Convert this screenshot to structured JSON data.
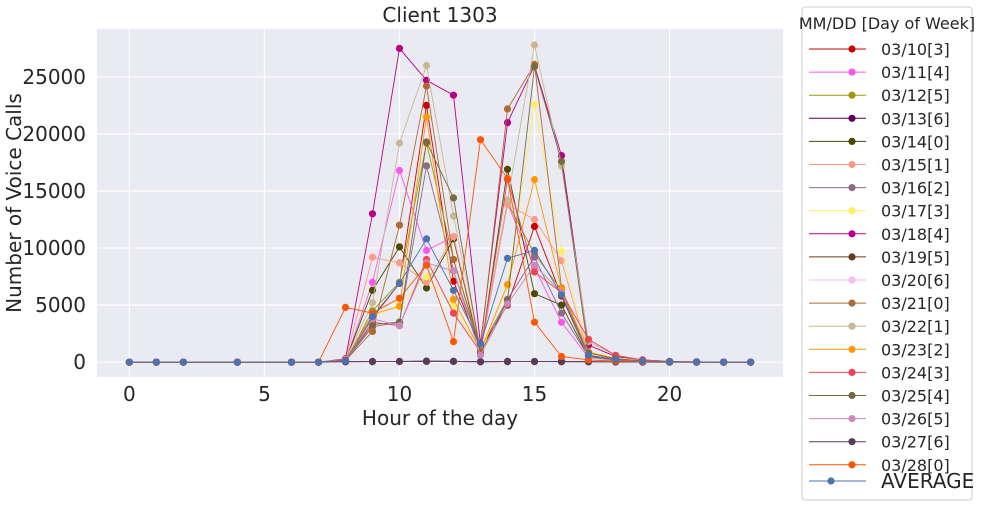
{
  "chart_data": {
    "type": "line",
    "title": "Client 1303",
    "xlabel": "Hour of the day",
    "ylabel": "Number of Voice Calls",
    "xlim": [
      -1.2,
      24.2
    ],
    "ylim": [
      -1300,
      29200
    ],
    "xticks": [
      0,
      5,
      10,
      15,
      20
    ],
    "yticks": [
      0,
      5000,
      10000,
      15000,
      20000,
      25000
    ],
    "grid": true,
    "legend_title": "MM/DD [Day of Week]",
    "legend_placement": "outside-right",
    "x": [
      0,
      1,
      2,
      4,
      6,
      7,
      8,
      9,
      10,
      11,
      12,
      13,
      14,
      15,
      16,
      17,
      18,
      19,
      20,
      21,
      22,
      23
    ],
    "series": [
      {
        "name": "03/10[3]",
        "color": "#cc0000",
        "values": [
          0,
          0,
          0,
          0,
          0,
          0,
          150,
          3900,
          6900,
          22500,
          7100,
          1200,
          5000,
          11900,
          5800,
          500,
          250,
          100,
          50,
          20,
          0,
          0
        ]
      },
      {
        "name": "03/11[4]",
        "color": "#ff55ee",
        "values": [
          0,
          0,
          0,
          0,
          0,
          0,
          80,
          7000,
          16800,
          9800,
          11000,
          900,
          13900,
          8300,
          3500,
          400,
          200,
          80,
          40,
          10,
          0,
          0
        ]
      },
      {
        "name": "03/12[5]",
        "color": "#9a9a10",
        "values": [
          0,
          0,
          0,
          0,
          0,
          0,
          100,
          4500,
          7000,
          19200,
          9000,
          1000,
          14000,
          9500,
          6300,
          500,
          200,
          80,
          40,
          10,
          0,
          0
        ]
      },
      {
        "name": "03/13[6]",
        "color": "#5c005c",
        "values": [
          0,
          0,
          0,
          0,
          0,
          0,
          30,
          60,
          70,
          90,
          80,
          30,
          70,
          60,
          60,
          40,
          20,
          10,
          5,
          0,
          0,
          0
        ]
      },
      {
        "name": "03/14[0]",
        "color": "#4a4a00",
        "values": [
          0,
          0,
          0,
          0,
          0,
          0,
          120,
          6300,
          10100,
          6500,
          10800,
          800,
          16900,
          6000,
          5000,
          450,
          200,
          80,
          40,
          10,
          0,
          0
        ]
      },
      {
        "name": "03/15[1]",
        "color": "#ff9988",
        "values": [
          0,
          0,
          0,
          0,
          0,
          0,
          200,
          9200,
          8700,
          7000,
          11000,
          1100,
          13800,
          12500,
          8900,
          600,
          300,
          120,
          50,
          20,
          0,
          0
        ]
      },
      {
        "name": "03/16[2]",
        "color": "#8b6b8b",
        "values": [
          0,
          0,
          0,
          0,
          0,
          0,
          150,
          3100,
          3500,
          17200,
          8000,
          1200,
          5500,
          9200,
          4300,
          500,
          250,
          100,
          40,
          10,
          0,
          0
        ]
      },
      {
        "name": "03/17[3]",
        "color": "#ffee66",
        "values": [
          0,
          0,
          0,
          0,
          0,
          0,
          120,
          4000,
          5000,
          7500,
          4900,
          800,
          6700,
          22600,
          9700,
          900,
          400,
          150,
          60,
          20,
          0,
          0
        ]
      },
      {
        "name": "03/18[4]",
        "color": "#bb0088",
        "values": [
          0,
          0,
          0,
          0,
          0,
          0,
          300,
          13000,
          27500,
          24700,
          23400,
          1600,
          21000,
          26000,
          18100,
          1500,
          500,
          200,
          80,
          30,
          0,
          0
        ]
      },
      {
        "name": "03/19[5]",
        "color": "#6b3a1e",
        "values": [
          0,
          0,
          0,
          0,
          0,
          0,
          30,
          50,
          60,
          80,
          70,
          30,
          60,
          60,
          50,
          30,
          15,
          5,
          0,
          0,
          0,
          0
        ]
      },
      {
        "name": "03/20[6]",
        "color": "#f5bbf5",
        "values": [
          0,
          0,
          0,
          0,
          0,
          0,
          20,
          40,
          50,
          60,
          50,
          20,
          40,
          40,
          30,
          20,
          10,
          5,
          0,
          0,
          0,
          0
        ]
      },
      {
        "name": "03/21[0]",
        "color": "#b06a30",
        "values": [
          0,
          0,
          0,
          0,
          0,
          0,
          150,
          2700,
          12000,
          24200,
          9000,
          1300,
          22200,
          26100,
          6500,
          600,
          250,
          100,
          40,
          10,
          0,
          0
        ]
      },
      {
        "name": "03/22[1]",
        "color": "#c8b890",
        "values": [
          0,
          0,
          0,
          0,
          0,
          0,
          250,
          5200,
          19200,
          26000,
          12800,
          1300,
          14200,
          27800,
          17200,
          1800,
          600,
          200,
          80,
          30,
          0,
          0
        ]
      },
      {
        "name": "03/23[2]",
        "color": "#ff9900",
        "values": [
          0,
          0,
          0,
          0,
          0,
          0,
          200,
          4200,
          4900,
          21500,
          5500,
          1000,
          6800,
          16000,
          6400,
          900,
          300,
          120,
          50,
          20,
          0,
          0
        ]
      },
      {
        "name": "03/24[3]",
        "color": "#ee4455",
        "values": [
          0,
          0,
          0,
          0,
          0,
          0,
          180,
          3500,
          3200,
          9000,
          4300,
          900,
          16000,
          7900,
          6100,
          2000,
          600,
          200,
          60,
          20,
          0,
          0
        ]
      },
      {
        "name": "03/25[4]",
        "color": "#7a6a40",
        "values": [
          0,
          0,
          0,
          0,
          0,
          0,
          150,
          3300,
          3500,
          19300,
          14400,
          800,
          5400,
          25900,
          17600,
          800,
          300,
          100,
          40,
          10,
          0,
          0
        ]
      },
      {
        "name": "03/26[5]",
        "color": "#cc88bb",
        "values": [
          0,
          0,
          0,
          0,
          0,
          0,
          60,
          3800,
          3200,
          8700,
          8000,
          600,
          5100,
          8500,
          6100,
          400,
          150,
          60,
          20,
          5,
          0,
          0
        ]
      },
      {
        "name": "03/27[6]",
        "color": "#5a3a5a",
        "values": [
          0,
          0,
          0,
          0,
          0,
          0,
          40,
          50,
          60,
          70,
          60,
          30,
          50,
          50,
          40,
          30,
          15,
          5,
          0,
          0,
          0,
          0
        ]
      },
      {
        "name": "03/28[0]",
        "color": "#ff5500",
        "values": [
          0,
          0,
          0,
          0,
          0,
          0,
          4800,
          4300,
          5600,
          8500,
          1800,
          19500,
          16100,
          3500,
          500,
          200,
          100,
          50,
          20,
          0,
          0,
          0
        ]
      },
      {
        "name": "AVERAGE",
        "color": "#4c72b0",
        "values": [
          0,
          0,
          0,
          0,
          0,
          0,
          120,
          4000,
          6900,
          10800,
          6300,
          1600,
          9100,
          9800,
          5900,
          600,
          250,
          100,
          40,
          10,
          0,
          0
        ]
      }
    ]
  }
}
